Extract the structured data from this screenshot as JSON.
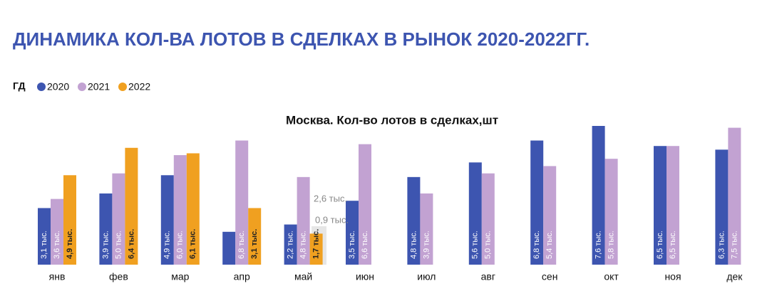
{
  "chart_data": {
    "type": "bar",
    "page_title": "ДИНАМИКА КОЛ-ВА ЛОТОВ В СДЕЛКАХ В РЫНОК 2020-2022ГГ.",
    "legend_title": "ГД",
    "title": "Москва. Кол-во лотов в сделках,шт",
    "categories": [
      "янв",
      "фев",
      "мар",
      "апр",
      "май",
      "июн",
      "июл",
      "авг",
      "сен",
      "окт",
      "ноя",
      "дек"
    ],
    "series": [
      {
        "name": "2020",
        "color": "#3d55b0",
        "values": [
          3.1,
          3.9,
          4.9,
          1.8,
          2.2,
          3.5,
          4.8,
          5.6,
          6.8,
          7.6,
          6.5,
          6.3
        ],
        "value_labels": [
          "3,1 тыс.",
          "3,9 тыс.",
          "4,9 тыс.",
          null,
          "2,2 тыс.",
          "3,5 тыс.",
          "4,8 тыс.",
          "5,6 тыс.",
          "6,8 тыс.",
          "7,6 тыс.",
          "6,5 тыс.",
          "6,3 тыс."
        ]
      },
      {
        "name": "2021",
        "color": "#c2a2d2",
        "values": [
          3.6,
          5.0,
          6.0,
          6.8,
          4.8,
          6.6,
          3.9,
          5.0,
          5.4,
          5.8,
          6.5,
          7.5
        ],
        "value_labels": [
          "3,6 тыс.",
          "5,0 тыс.",
          "6,0 тыс.",
          "6,8 тыс.",
          "4,8 тыс.",
          "6,6 тыс.",
          "3,9 тыс.",
          "5,0 тыс.",
          "5,4 тыс.",
          "5,8 тыс.",
          "6,5 тыс.",
          "7,5 тыс."
        ]
      },
      {
        "name": "2022",
        "color": "#f0a020",
        "values": [
          4.9,
          6.4,
          6.1,
          3.1,
          1.7,
          null,
          null,
          null,
          null,
          null,
          null,
          null
        ],
        "value_labels": [
          "4,9 тыс.",
          "6,4 тыс.",
          "6,1 тыс.",
          "3,1 тыс.",
          "1,7 тыс.",
          null,
          null,
          null,
          null,
          null,
          null,
          null
        ]
      }
    ],
    "annotations": [
      "2,6 тыс.",
      "0,9 тыс."
    ]
  }
}
